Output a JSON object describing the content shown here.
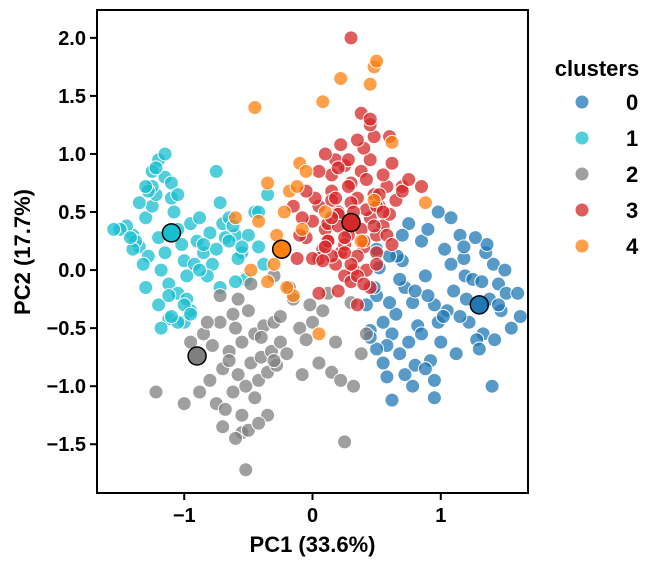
{
  "chart_data": {
    "type": "scatter",
    "title": "",
    "xlabel": "PC1 (33.6%)",
    "ylabel": "PC2 (17.7%)",
    "xlim": [
      -1.68,
      1.68
    ],
    "ylim": [
      -1.92,
      2.24
    ],
    "xticks": [
      -1,
      0,
      1
    ],
    "xtick_labels": [
      "−1",
      "0",
      "1"
    ],
    "yticks": [
      -1.5,
      -1.0,
      -0.5,
      0.0,
      0.5,
      1.0,
      1.5,
      2.0
    ],
    "ytick_labels": [
      "−1.5",
      "−1.0",
      "−0.5",
      "0.0",
      "0.5",
      "1.0",
      "1.5",
      "2.0"
    ],
    "grid": false,
    "legend": {
      "title": "clusters",
      "placement": "right, outside plot"
    },
    "series": [
      {
        "name": "0",
        "color": "#1f77b4",
        "centroid": [
          1.3,
          -0.3
        ],
        "x": [
          1.38,
          1.22,
          1.45,
          1.05,
          1.62,
          0.95,
          1.33,
          1.51,
          0.82,
          1.19,
          1.28,
          1.41,
          1.1,
          1.0,
          0.9,
          1.55,
          1.25,
          0.78,
          1.35,
          1.15,
          1.47,
          1.18,
          0.88,
          0.72,
          1.3,
          1.6,
          1.42,
          1.08,
          1.2,
          0.98,
          0.85,
          0.65,
          1.12,
          1.36,
          1.5,
          0.92,
          0.75,
          1.03,
          0.6,
          0.55,
          0.68,
          0.8,
          0.95,
          1.27,
          1.45,
          0.7,
          0.62,
          0.5,
          0.58,
          0.45,
          0.78,
          0.88,
          0.95,
          0.72,
          0.85,
          0.66,
          0.52,
          0.48,
          1.4,
          1.02,
          0.9,
          1.15,
          0.68,
          0.8,
          0.58,
          0.75,
          0.5,
          0.7,
          0.62,
          1.18,
          0.55,
          0.5,
          0.98,
          0.42,
          1.08,
          1.32,
          0.6,
          0.45
        ],
        "y": [
          -0.25,
          -0.45,
          -0.12,
          -0.35,
          -0.4,
          -0.3,
          -0.55,
          -0.2,
          -0.48,
          -0.05,
          -0.6,
          0.05,
          -0.18,
          -0.62,
          -0.22,
          -0.5,
          -0.08,
          -0.28,
          0.15,
          -0.4,
          -0.35,
          0.1,
          -0.05,
          -0.15,
          -0.68,
          -0.2,
          -0.6,
          0.05,
          -0.25,
          -0.45,
          -0.55,
          -0.38,
          -0.72,
          0.22,
          0.0,
          -0.78,
          -0.62,
          0.18,
          -0.28,
          -0.45,
          -0.08,
          -0.82,
          -0.95,
          0.28,
          -0.3,
          0.08,
          -0.55,
          -0.22,
          -0.65,
          -0.52,
          -1.0,
          -0.85,
          -1.1,
          -0.9,
          0.25,
          0.12,
          0.02,
          -0.15,
          -1.0,
          -0.4,
          0.35,
          0.3,
          -0.72,
          -0.18,
          -0.92,
          0.4,
          0.18,
          0.3,
          -1.12,
          0.2,
          -0.8,
          -0.68,
          0.5,
          -0.3,
          0.45,
          -0.1,
          0.12,
          -0.58
        ],
        "sizes": []
      },
      {
        "name": "1",
        "color": "#17becf",
        "centroid": [
          -1.1,
          0.32
        ],
        "x": [
          -1.05,
          -1.2,
          -1.3,
          -1.15,
          -0.95,
          -1.35,
          -1.25,
          -1.4,
          -1.1,
          -1.0,
          -0.9,
          -1.28,
          -1.45,
          -1.18,
          -1.08,
          -0.85,
          -1.22,
          -1.32,
          -0.98,
          -1.12,
          -1.38,
          -0.8,
          -0.88,
          -1.02,
          -1.15,
          -1.25,
          -0.75,
          -0.7,
          -0.92,
          -1.05,
          -1.5,
          -1.2,
          -1.3,
          -0.95,
          -0.6,
          -0.65,
          -0.78,
          -0.85,
          -0.55,
          -1.0,
          -1.12,
          -1.35,
          -0.68,
          -0.58,
          -0.72,
          -1.1,
          -1.2,
          -1.25,
          -1.28,
          -1.15,
          -1.05,
          -0.98,
          -0.62,
          -0.5,
          -0.45,
          -0.55,
          -0.82,
          -0.72,
          -1.0,
          -1.18,
          -0.52,
          -0.42,
          -0.6,
          -1.4,
          -1.3,
          -1.55,
          -0.95,
          -1.05,
          -1.12,
          -0.75,
          -0.88,
          -0.65,
          -0.38,
          -0.42,
          -0.35,
          -1.22,
          -1.1,
          -1.42
        ],
        "y": [
          0.35,
          0.28,
          0.45,
          0.15,
          0.4,
          0.2,
          0.55,
          0.3,
          0.62,
          0.08,
          0.25,
          0.12,
          0.38,
          0.0,
          0.5,
          0.15,
          0.65,
          0.05,
          -0.05,
          -0.12,
          0.25,
          0.32,
          0.45,
          0.22,
          0.8,
          0.72,
          0.18,
          0.4,
          0.05,
          -0.2,
          0.35,
          -0.3,
          -0.15,
          -0.35,
          0.3,
          0.45,
          0.05,
          0.22,
          0.15,
          -0.45,
          -0.42,
          0.58,
          0.28,
          0.1,
          -0.15,
          0.75,
          0.95,
          0.85,
          0.68,
          1.0,
          0.65,
          -0.25,
          0.38,
          0.3,
          0.5,
          0.2,
          -0.05,
          0.58,
          -0.3,
          -0.5,
          -0.08,
          0.2,
          -0.1,
          0.18,
          0.72,
          0.35,
          -0.38,
          -0.45,
          -0.22,
          0.85,
          0.0,
          0.25,
          0.05,
          0.5,
          0.65,
          0.88,
          -0.4,
          0.28
        ],
        "sizes": []
      },
      {
        "name": "2",
        "color": "#7f7f7f",
        "centroid": [
          -0.9,
          -0.74
        ],
        "x": [
          -0.85,
          -0.72,
          -0.6,
          -0.5,
          -0.78,
          -0.65,
          -0.55,
          -0.45,
          -0.38,
          -0.3,
          -0.7,
          -0.58,
          -0.48,
          -0.4,
          -0.32,
          -0.25,
          -0.62,
          -0.52,
          -0.42,
          -0.35,
          -0.28,
          -0.75,
          -0.68,
          -0.55,
          -0.45,
          -0.2,
          -0.1,
          -0.05,
          0.05,
          0.15,
          0.22,
          0.32,
          0.38,
          -0.15,
          -0.02,
          0.12,
          -0.55,
          -0.6,
          -0.5,
          -0.35,
          -0.42,
          -0.8,
          -0.88,
          -0.65,
          -0.25,
          -0.18,
          -0.3,
          0.18,
          0.3,
          0.42,
          -0.7,
          -1.0,
          -0.95,
          -0.82,
          -0.58,
          -0.48,
          -0.62,
          -0.72,
          -0.52,
          0.0,
          0.08,
          -1.22,
          -0.4,
          -0.3,
          0.25,
          -0.08
        ],
        "y": [
          -0.55,
          -0.45,
          -0.5,
          -0.35,
          -0.65,
          -0.7,
          -0.62,
          -0.55,
          -0.48,
          -0.45,
          -0.85,
          -0.9,
          -0.8,
          -0.75,
          -0.7,
          -0.62,
          -1.05,
          -1.0,
          -0.95,
          -0.88,
          -0.82,
          -1.15,
          -1.2,
          -1.25,
          -1.1,
          -0.72,
          -0.5,
          -0.6,
          -0.8,
          -0.88,
          -0.95,
          -1.0,
          -0.72,
          -0.25,
          -0.3,
          -0.2,
          -1.4,
          -1.45,
          -1.38,
          -1.25,
          -1.32,
          -0.95,
          -1.05,
          -0.78,
          -0.4,
          -0.15,
          -0.05,
          -0.62,
          -0.28,
          -0.55,
          -1.35,
          -1.15,
          -0.62,
          -0.45,
          -0.25,
          -0.12,
          -0.38,
          -0.22,
          -1.72,
          -0.45,
          -0.35,
          -1.05,
          -0.58,
          -0.78,
          -1.48,
          -0.9
        ],
        "sizes": []
      },
      {
        "name": "3",
        "color": "#d62728",
        "centroid": [
          0.3,
          0.41
        ],
        "x": [
          0.2,
          0.35,
          0.45,
          0.1,
          0.28,
          0.52,
          0.4,
          0.15,
          0.05,
          0.3,
          0.55,
          0.22,
          0.38,
          0.48,
          0.12,
          0.0,
          0.25,
          0.42,
          0.6,
          0.18,
          0.32,
          0.5,
          0.08,
          0.65,
          0.2,
          0.38,
          0.45,
          -0.05,
          0.15,
          0.28,
          0.58,
          0.35,
          0.02,
          0.42,
          0.5,
          0.25,
          0.12,
          -0.08,
          0.3,
          0.7,
          0.18,
          0.4,
          0.55,
          0.62,
          0.48,
          0.35,
          0.22,
          0.05,
          0.1,
          0.28,
          0.45,
          0.38,
          0.2,
          0.32,
          0.15,
          0.42,
          0.5,
          0.25,
          0.05,
          0.3,
          0.58,
          0.62,
          0.7,
          0.45,
          0.35,
          0.4,
          0.48,
          0.5,
          0.52,
          0.55,
          0.3,
          0.2,
          0.4,
          0.15,
          0.75,
          0.85,
          -0.1,
          -0.15,
          -0.05,
          0.0,
          0.08,
          0.12,
          0.18,
          0.25,
          0.05,
          0.2,
          0.35,
          0.1,
          -0.12,
          0.45,
          0.6,
          0.25,
          0.15,
          0.3
        ],
        "y": [
          0.5,
          0.62,
          0.45,
          0.35,
          0.3,
          0.55,
          0.2,
          0.68,
          0.55,
          0.75,
          0.38,
          0.15,
          0.85,
          0.65,
          0.25,
          0.42,
          0.9,
          0.78,
          0.48,
          0.05,
          0.0,
          0.3,
          0.18,
          0.6,
          0.48,
          0.35,
          0.95,
          0.28,
          0.82,
          0.72,
          0.72,
          0.12,
          0.62,
          0.52,
          0.15,
          0.22,
          0.4,
          0.45,
          0.58,
          0.72,
          0.95,
          1.05,
          0.82,
          0.92,
          1.15,
          1.12,
          1.08,
          0.85,
          1.0,
          0.95,
          1.25,
          1.35,
          0.88,
          0.5,
          0.6,
          0.0,
          0.05,
          -0.05,
          0.1,
          -0.1,
          0.3,
          0.22,
          0.68,
          -0.15,
          -0.05,
          0.25,
          0.38,
          0.55,
          0.65,
          0.5,
          0.05,
          0.38,
          -0.12,
          0.12,
          0.78,
          0.72,
          0.3,
          0.55,
          0.68,
          0.1,
          0.08,
          0.25,
          0.62,
          0.28,
          -0.2,
          -0.18,
          -0.3,
          0.2,
          0.1,
          1.3,
          1.15,
          0.15,
          0.45,
          2.0
        ],
        "sizes": []
      },
      {
        "name": "4",
        "color": "#ff7f0e",
        "centroid": [
          -0.24,
          0.18
        ],
        "x": [
          -0.35,
          -0.1,
          0.08,
          0.48,
          0.5,
          0.45,
          0.22,
          -0.45,
          -0.18,
          -0.05,
          -0.6,
          -0.42,
          -0.28,
          0.1,
          0.88,
          -0.48,
          -0.15,
          -0.2,
          -0.3,
          -0.35,
          0.62,
          -0.08,
          0.05,
          -0.22,
          -0.12,
          0.38,
          0.48
        ],
        "y": [
          0.75,
          0.92,
          1.45,
          1.75,
          1.8,
          1.6,
          1.65,
          1.4,
          0.68,
          0.85,
          0.45,
          0.42,
          0.3,
          0.5,
          0.58,
          0.0,
          -0.22,
          -0.15,
          0.05,
          -0.1,
          1.1,
          0.35,
          -0.55,
          0.5,
          0.72,
          0.25,
          0.6
        ],
        "sizes": []
      }
    ]
  }
}
